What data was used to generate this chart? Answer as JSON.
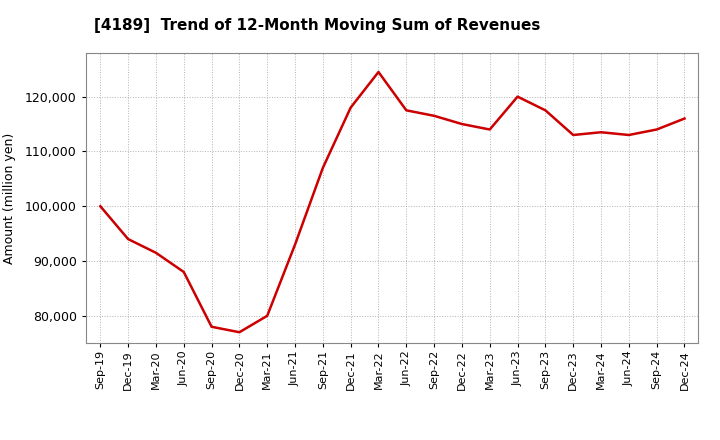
{
  "title": "[4189]  Trend of 12-Month Moving Sum of Revenues",
  "ylabel": "Amount (million yen)",
  "line_color": "#cc0000",
  "background_color": "#ffffff",
  "plot_bg_color": "#ffffff",
  "grid_color": "#aaaaaa",
  "ylim": [
    75000,
    128000
  ],
  "yticks": [
    80000,
    90000,
    100000,
    110000,
    120000
  ],
  "x_labels": [
    "Sep-19",
    "Dec-19",
    "Mar-20",
    "Jun-20",
    "Sep-20",
    "Dec-20",
    "Mar-21",
    "Jun-21",
    "Sep-21",
    "Dec-21",
    "Mar-22",
    "Jun-22",
    "Sep-22",
    "Dec-22",
    "Mar-23",
    "Jun-23",
    "Sep-23",
    "Dec-23",
    "Mar-24",
    "Jun-24",
    "Sep-24",
    "Dec-24"
  ],
  "values": [
    100000,
    94000,
    91500,
    88000,
    78000,
    77000,
    80000,
    93000,
    107000,
    118000,
    124500,
    117500,
    116500,
    115000,
    114000,
    120000,
    117500,
    113000,
    113500,
    113000,
    114000,
    116000
  ]
}
